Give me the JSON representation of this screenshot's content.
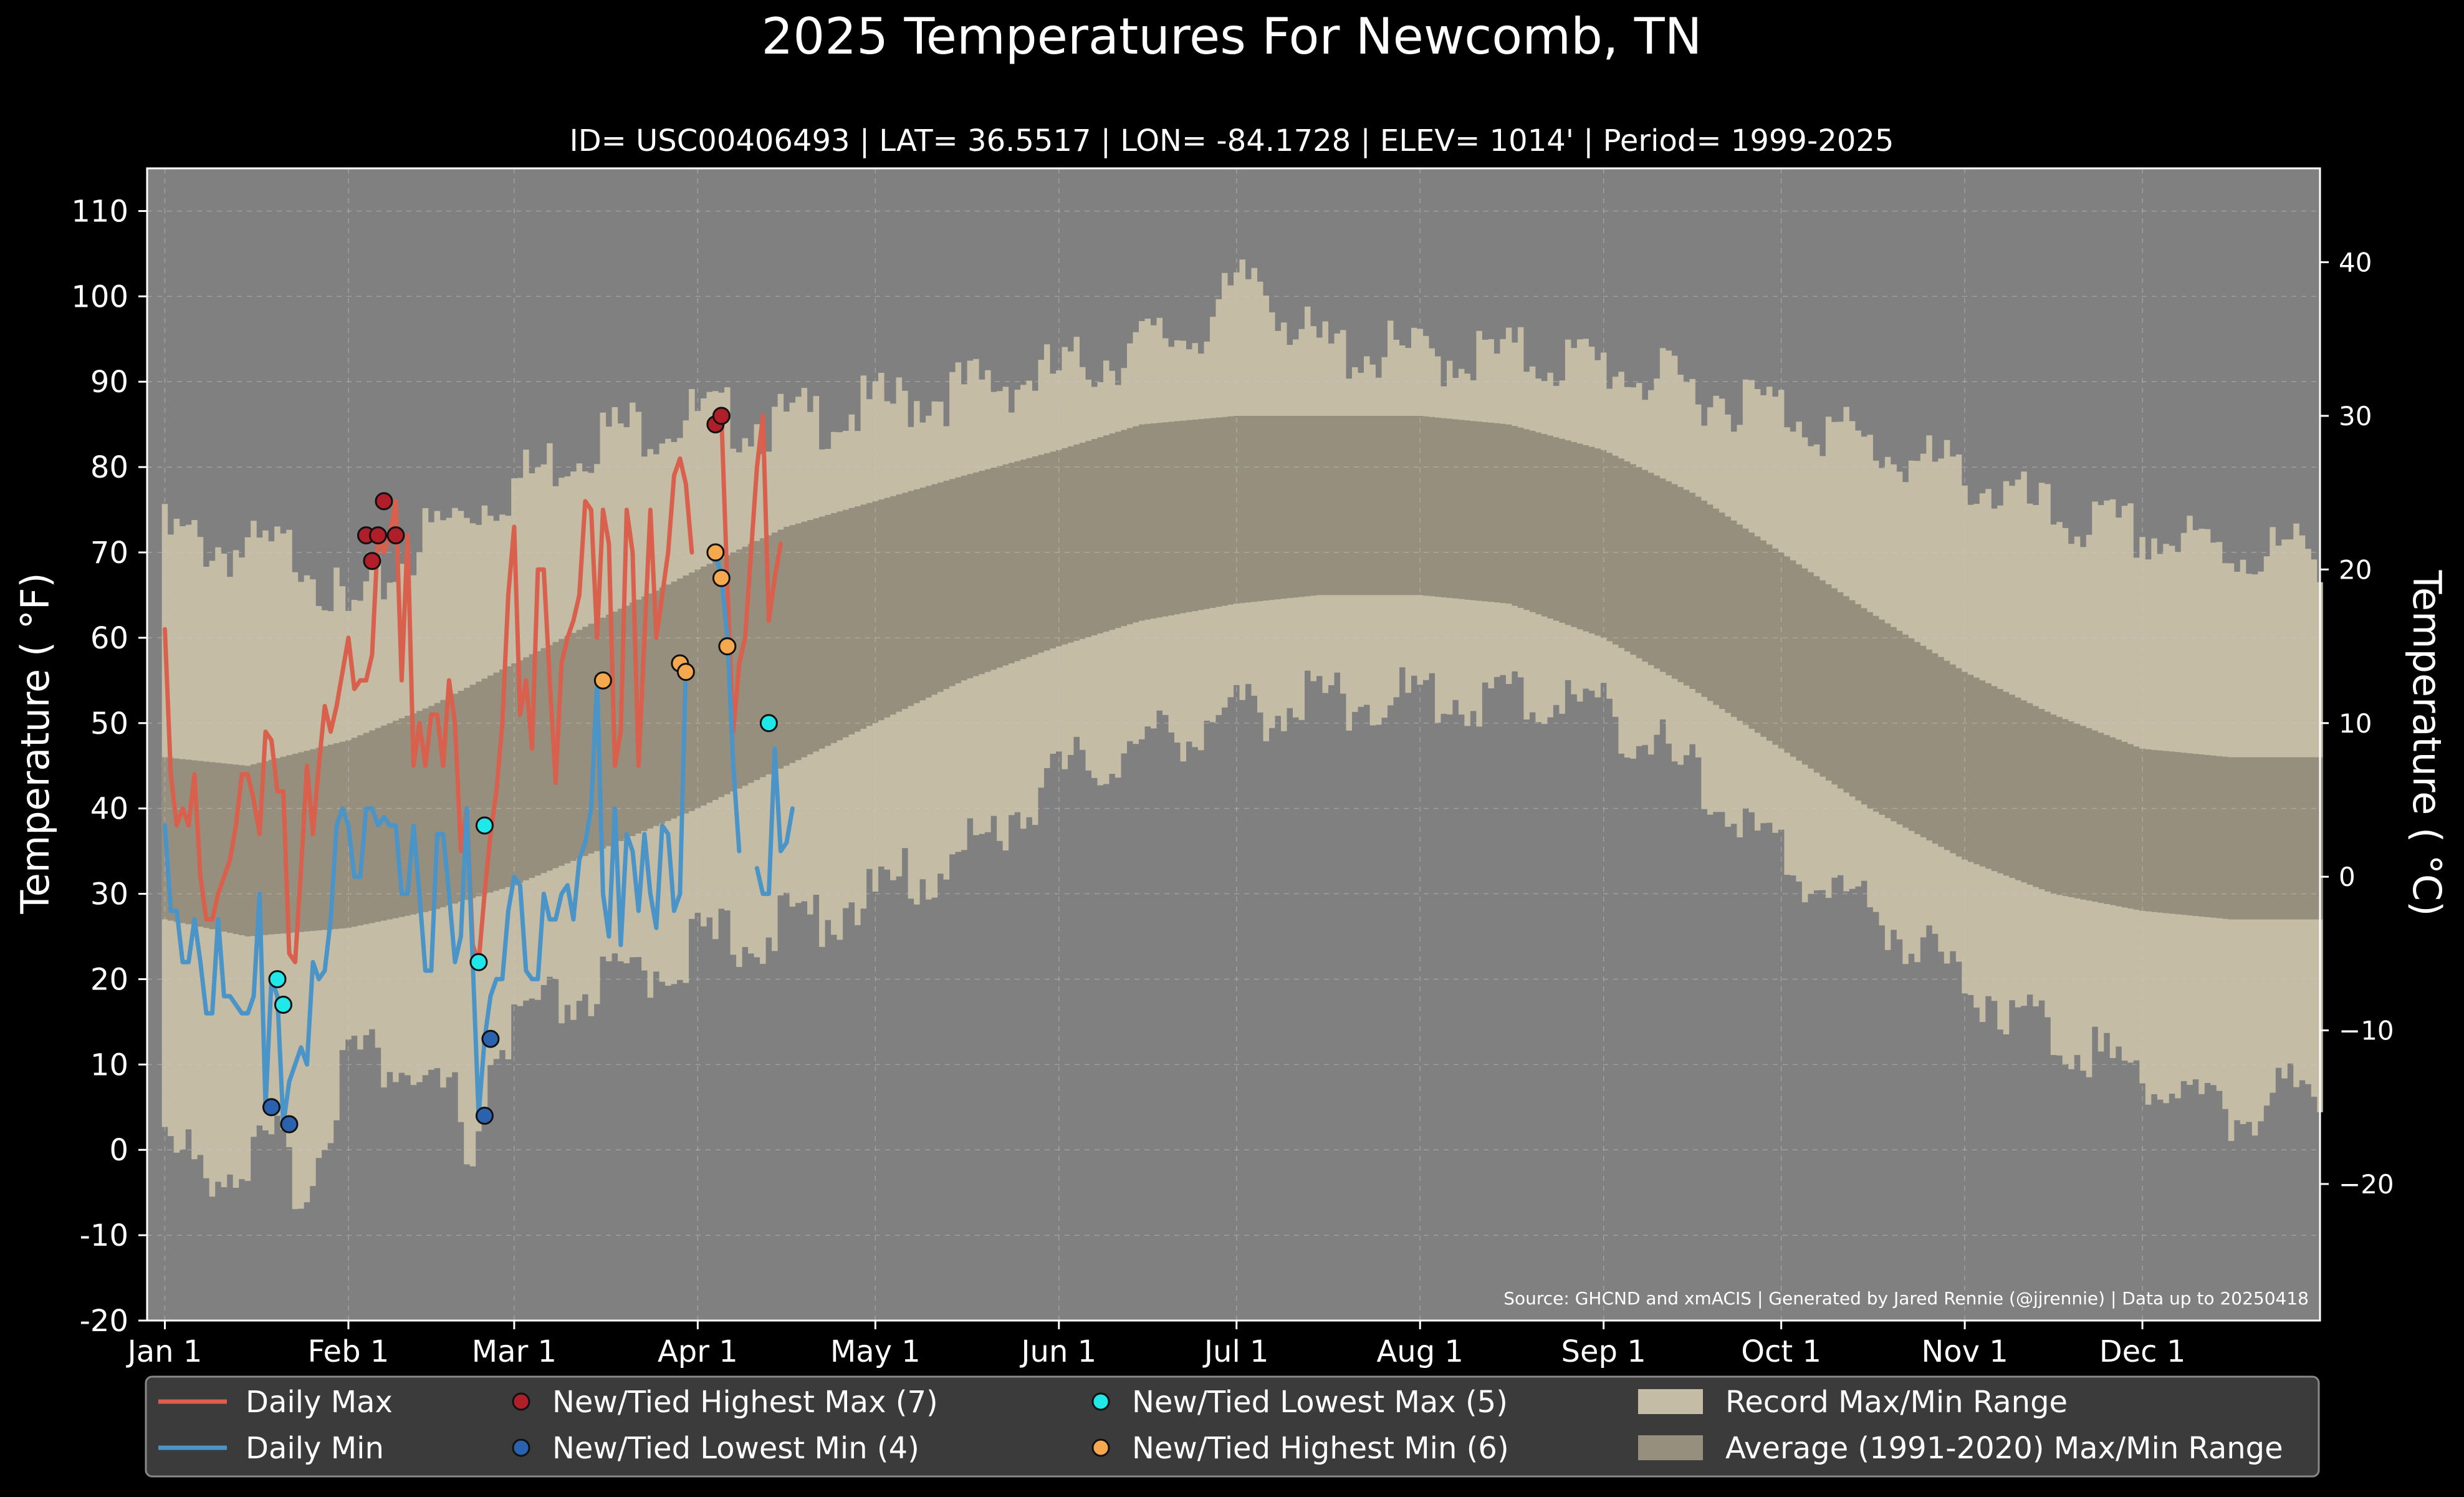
{
  "title": "2025 Temperatures For Newcomb, TN",
  "subtitle": "ID= USC00406493 | LAT= 36.5517 | LON= -84.1728 | ELEV= 1014' | Period= 1999-2025",
  "source_note": "Source: GHCND and xmACIS | Generated by Jared Rennie (@jjrennie) | Data up to 20250418",
  "colors": {
    "background": "#000000",
    "plot_bg": "#808080",
    "record_band": "#c5bca5",
    "normal_band": "#978f7e",
    "daily_max": "#d9604c",
    "daily_min": "#4a94c8",
    "highest_max": "#b01e2a",
    "lowest_min": "#2b62b0",
    "lowest_max": "#1fe8e8",
    "highest_min": "#f5a84e",
    "legend_bg": "#3b3b3b"
  },
  "chart_data": {
    "type": "line",
    "title": "2025 Temperatures For Newcomb, TN",
    "xlabel": "",
    "ylabel": "Temperature ( °F)",
    "ylabel_right": "Temperature ( °C)",
    "ylim": [
      -20,
      115
    ],
    "xlim_day": [
      -2,
      365
    ],
    "y_ticks": [
      -20,
      -10,
      0,
      10,
      20,
      30,
      40,
      50,
      60,
      70,
      80,
      90,
      100,
      110
    ],
    "y_ticks_right": [
      -20,
      -10,
      0,
      10,
      20,
      30,
      40
    ],
    "x_ticks": [
      {
        "label": "Jan 1",
        "day": 1
      },
      {
        "label": "Feb 1",
        "day": 32
      },
      {
        "label": "Mar 1",
        "day": 60
      },
      {
        "label": "Apr 1",
        "day": 91
      },
      {
        "label": "May 1",
        "day": 121
      },
      {
        "label": "Jun 1",
        "day": 152
      },
      {
        "label": "Jul 1",
        "day": 182
      },
      {
        "label": "Aug 1",
        "day": 213
      },
      {
        "label": "Sep 1",
        "day": 244
      },
      {
        "label": "Oct 1",
        "day": 274
      },
      {
        "label": "Nov 1",
        "day": 305
      },
      {
        "label": "Dec 1",
        "day": 335
      }
    ],
    "grid": true,
    "legend_position": "bottom",
    "record_max_anchors": [
      [
        1,
        72
      ],
      [
        15,
        70
      ],
      [
        25,
        70
      ],
      [
        32,
        62
      ],
      [
        45,
        72
      ],
      [
        60,
        78
      ],
      [
        75,
        84
      ],
      [
        91,
        86
      ],
      [
        105,
        85
      ],
      [
        121,
        87
      ],
      [
        135,
        89
      ],
      [
        152,
        91
      ],
      [
        165,
        94
      ],
      [
        175,
        96
      ],
      [
        182,
        100
      ],
      [
        185,
        103
      ],
      [
        195,
        94
      ],
      [
        213,
        93
      ],
      [
        230,
        93
      ],
      [
        244,
        92
      ],
      [
        259,
        89
      ],
      [
        274,
        87
      ],
      [
        290,
        82
      ],
      [
        305,
        79
      ],
      [
        320,
        74
      ],
      [
        335,
        72
      ],
      [
        350,
        70
      ],
      [
        365,
        70
      ]
    ],
    "record_min_anchors": [
      [
        1,
        0
      ],
      [
        10,
        -2
      ],
      [
        20,
        0
      ],
      [
        25,
        -5
      ],
      [
        32,
        12
      ],
      [
        40,
        10
      ],
      [
        50,
        6
      ],
      [
        52,
        -5
      ],
      [
        56,
        10
      ],
      [
        60,
        14
      ],
      [
        70,
        18
      ],
      [
        80,
        20
      ],
      [
        91,
        24
      ],
      [
        105,
        26
      ],
      [
        121,
        30
      ],
      [
        135,
        34
      ],
      [
        152,
        44
      ],
      [
        165,
        47
      ],
      [
        175,
        50
      ],
      [
        182,
        51
      ],
      [
        195,
        53
      ],
      [
        213,
        53
      ],
      [
        230,
        53
      ],
      [
        244,
        52
      ],
      [
        255,
        46
      ],
      [
        265,
        40
      ],
      [
        274,
        34
      ],
      [
        290,
        28
      ],
      [
        305,
        20
      ],
      [
        320,
        14
      ],
      [
        335,
        9
      ],
      [
        350,
        4
      ],
      [
        365,
        8
      ]
    ],
    "normal_max_anchors": [
      [
        1,
        46
      ],
      [
        15,
        45
      ],
      [
        32,
        48
      ],
      [
        46,
        52
      ],
      [
        60,
        57
      ],
      [
        74,
        62
      ],
      [
        91,
        68
      ],
      [
        106,
        73
      ],
      [
        121,
        76
      ],
      [
        136,
        79
      ],
      [
        152,
        82
      ],
      [
        166,
        85
      ],
      [
        182,
        86
      ],
      [
        196,
        86
      ],
      [
        213,
        86
      ],
      [
        228,
        85
      ],
      [
        244,
        82
      ],
      [
        259,
        77
      ],
      [
        274,
        70
      ],
      [
        289,
        63
      ],
      [
        305,
        56
      ],
      [
        320,
        51
      ],
      [
        335,
        47
      ],
      [
        350,
        46
      ],
      [
        365,
        46
      ]
    ],
    "normal_min_anchors": [
      [
        1,
        27
      ],
      [
        15,
        25
      ],
      [
        32,
        26
      ],
      [
        46,
        28
      ],
      [
        60,
        31
      ],
      [
        74,
        35
      ],
      [
        91,
        40
      ],
      [
        106,
        45
      ],
      [
        121,
        50
      ],
      [
        136,
        55
      ],
      [
        152,
        59
      ],
      [
        166,
        62
      ],
      [
        182,
        64
      ],
      [
        196,
        65
      ],
      [
        213,
        65
      ],
      [
        228,
        64
      ],
      [
        244,
        60
      ],
      [
        259,
        54
      ],
      [
        274,
        47
      ],
      [
        289,
        40
      ],
      [
        305,
        34
      ],
      [
        320,
        30
      ],
      [
        335,
        28
      ],
      [
        350,
        27
      ],
      [
        365,
        27
      ]
    ],
    "series": [
      {
        "name": "Daily Max",
        "x": [
          1,
          2,
          3,
          4,
          5,
          6,
          7,
          8,
          9,
          10,
          11,
          12,
          13,
          14,
          15,
          16,
          17,
          18,
          19,
          20,
          21,
          22,
          23,
          24,
          25,
          26,
          27,
          28,
          29,
          30,
          31,
          32,
          33,
          34,
          35,
          36,
          37,
          38,
          39,
          40,
          41,
          42,
          43,
          44,
          45,
          46,
          47,
          48,
          49,
          50,
          51,
          52,
          53,
          54,
          55,
          56,
          57,
          58,
          59,
          60,
          61,
          62,
          63,
          64,
          65,
          66,
          67,
          68,
          69,
          70,
          71,
          72,
          73,
          74,
          75,
          76,
          77,
          78,
          79,
          80,
          81,
          82,
          83,
          84,
          85,
          86,
          87,
          88,
          89,
          90,
          91,
          92,
          93,
          94,
          95,
          96,
          97,
          98,
          99,
          100,
          101,
          102,
          103,
          104,
          105,
          106,
          107,
          108
        ],
        "values": [
          61,
          44,
          38,
          40,
          38,
          44,
          32,
          27,
          27,
          30,
          32,
          34,
          38,
          44,
          44,
          41,
          37,
          49,
          48,
          42,
          42,
          23,
          22,
          33,
          45,
          37,
          45,
          52,
          49,
          52,
          56,
          60,
          54,
          55,
          55,
          58,
          72,
          70,
          72,
          76,
          55,
          72,
          45,
          50,
          45,
          51,
          51,
          45,
          55,
          50,
          35,
          40,
          24,
          22,
          30,
          37,
          42,
          50,
          65,
          73,
          51,
          55,
          47,
          68,
          68,
          55,
          43,
          57,
          60,
          62,
          65,
          76,
          75,
          60,
          75,
          71,
          45,
          49,
          75,
          70,
          45,
          60,
          75,
          60,
          65,
          70,
          79,
          81,
          78,
          70,
          null,
          null,
          null,
          85,
          86,
          66,
          49,
          57,
          60,
          70,
          80,
          86,
          62,
          67,
          71,
          null,
          null,
          null
        ]
      },
      {
        "name": "Daily Min",
        "x": [
          1,
          2,
          3,
          4,
          5,
          6,
          7,
          8,
          9,
          10,
          11,
          12,
          13,
          14,
          15,
          16,
          17,
          18,
          19,
          20,
          21,
          22,
          23,
          24,
          25,
          26,
          27,
          28,
          29,
          30,
          31,
          32,
          33,
          34,
          35,
          36,
          37,
          38,
          39,
          40,
          41,
          42,
          43,
          44,
          45,
          46,
          47,
          48,
          49,
          50,
          51,
          52,
          53,
          54,
          55,
          56,
          57,
          58,
          59,
          60,
          61,
          62,
          63,
          64,
          65,
          66,
          67,
          68,
          69,
          70,
          71,
          72,
          73,
          74,
          75,
          76,
          77,
          78,
          79,
          80,
          81,
          82,
          83,
          84,
          85,
          86,
          87,
          88,
          89,
          90,
          91,
          92,
          93,
          94,
          95,
          96,
          97,
          98,
          99,
          100,
          101,
          102,
          103,
          104,
          105,
          106,
          107,
          108
        ],
        "values": [
          38,
          28,
          28,
          22,
          22,
          27,
          22,
          16,
          16,
          27,
          18,
          18,
          17,
          16,
          16,
          18,
          30,
          5,
          20,
          18,
          3,
          8,
          10,
          12,
          10,
          22,
          20,
          21,
          27,
          38,
          40,
          38,
          32,
          32,
          40,
          40,
          38,
          39,
          38,
          38,
          30,
          30,
          38,
          30,
          21,
          21,
          37,
          37,
          30,
          22,
          25,
          40,
          22,
          4,
          13,
          18,
          20,
          20,
          28,
          32,
          31,
          21,
          20,
          20,
          30,
          27,
          27,
          30,
          31,
          27,
          34,
          36,
          40,
          55,
          30,
          25,
          40,
          24,
          37,
          35,
          28,
          37,
          30,
          26,
          38,
          37,
          28,
          30,
          57,
          56,
          null,
          null,
          null,
          70,
          67,
          60,
          45,
          35,
          null,
          null,
          33,
          30,
          30,
          47,
          35,
          36,
          40,
          null
        ]
      }
    ],
    "markers": [
      {
        "name": "New/Tied Highest Max",
        "count": 7,
        "points": [
          [
            35,
            72
          ],
          [
            36,
            69
          ],
          [
            37,
            72
          ],
          [
            38,
            76
          ],
          [
            40,
            72
          ],
          [
            94,
            85
          ],
          [
            95,
            86
          ]
        ]
      },
      {
        "name": "New/Tied Lowest Min",
        "count": 4,
        "points": [
          [
            19,
            5
          ],
          [
            22,
            3
          ],
          [
            55,
            4
          ],
          [
            56,
            13
          ]
        ]
      },
      {
        "name": "New/Tied Lowest Max",
        "count": 5,
        "points": [
          [
            20,
            20
          ],
          [
            21,
            17
          ],
          [
            54,
            22
          ],
          [
            55,
            38
          ],
          [
            103,
            50
          ]
        ]
      },
      {
        "name": "New/Tied Highest Min",
        "count": 6,
        "points": [
          [
            75,
            55
          ],
          [
            88,
            57
          ],
          [
            89,
            56
          ],
          [
            94,
            70
          ],
          [
            95,
            67
          ],
          [
            96,
            59
          ]
        ]
      }
    ],
    "legend": [
      {
        "label": "Daily Max",
        "kind": "line",
        "color_key": "daily_max"
      },
      {
        "label": "New/Tied Highest Max (7)",
        "kind": "dot",
        "color_key": "highest_max"
      },
      {
        "label": "New/Tied Lowest Max (5)",
        "kind": "dot",
        "color_key": "lowest_max"
      },
      {
        "label": "Record Max/Min Range",
        "kind": "patch",
        "color_key": "record_band"
      },
      {
        "label": "Daily Min",
        "kind": "line",
        "color_key": "daily_min"
      },
      {
        "label": "New/Tied Lowest Min (4)",
        "kind": "dot",
        "color_key": "lowest_min"
      },
      {
        "label": "New/Tied Highest Min (6)",
        "kind": "dot",
        "color_key": "highest_min"
      },
      {
        "label": "Average (1991-2020) Max/Min Range",
        "kind": "patch",
        "color_key": "normal_band"
      }
    ]
  }
}
